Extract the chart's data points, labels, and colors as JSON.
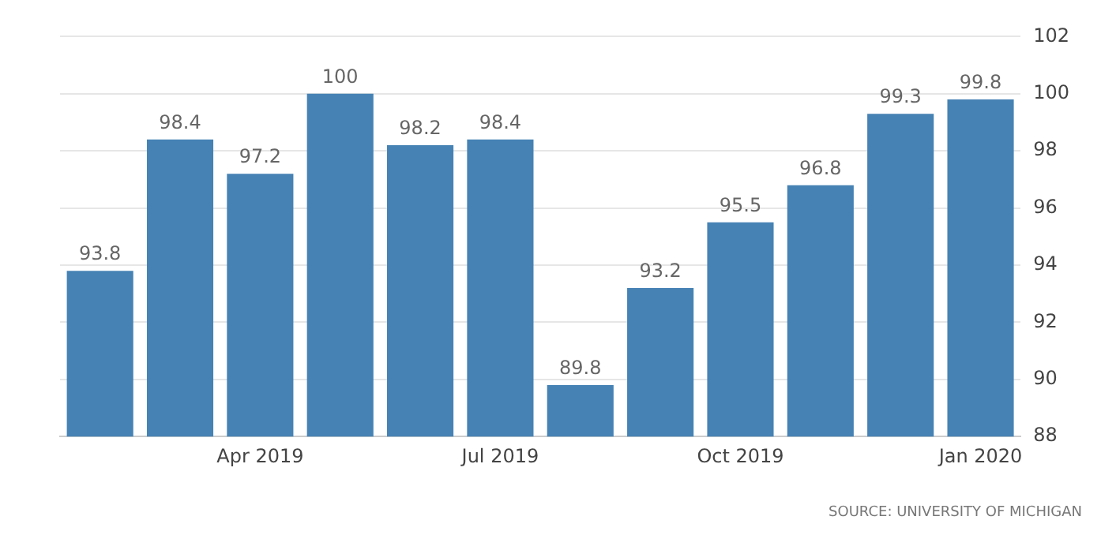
{
  "chart_data": {
    "type": "bar",
    "categories": [
      null,
      null,
      "Apr 2019",
      null,
      null,
      "Jul 2019",
      null,
      null,
      "Oct 2019",
      null,
      null,
      "Jan 2020"
    ],
    "values": [
      93.8,
      98.4,
      97.2,
      100,
      98.2,
      98.4,
      89.8,
      93.2,
      95.5,
      96.8,
      99.3,
      99.8
    ],
    "color": "#4682b4",
    "ylim": [
      88,
      102
    ],
    "yticks": [
      88,
      90,
      92,
      94,
      96,
      98,
      100,
      102
    ],
    "grid": "y",
    "data_labels": true,
    "annotations": [
      "SOURCE: UNIVERSITY OF MICHIGAN"
    ]
  }
}
